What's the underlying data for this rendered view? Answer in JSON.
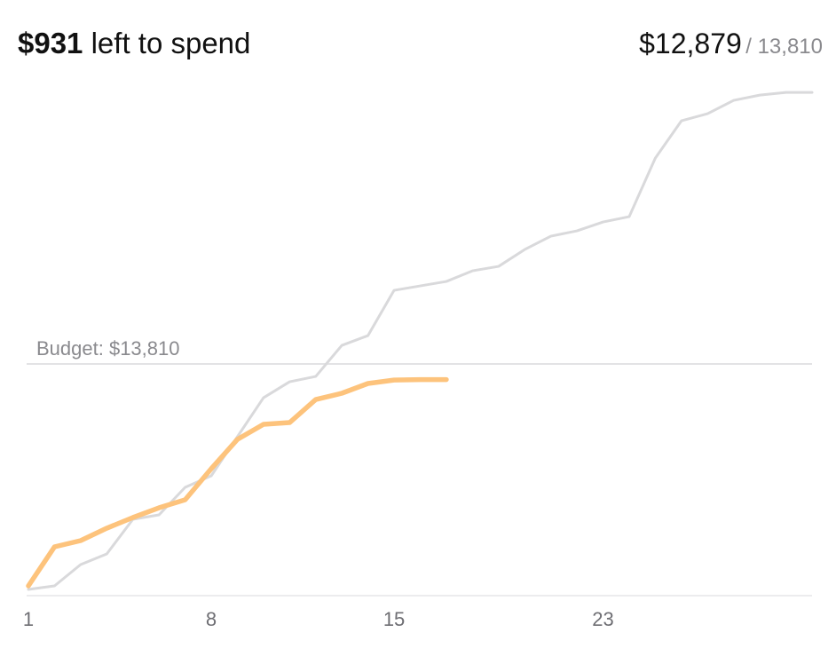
{
  "header": {
    "remaining": "$931",
    "remaining_label": "left to spend",
    "spent": "$12,879",
    "budget": "/ 13,810"
  },
  "chart_data": {
    "type": "line",
    "x": [
      1,
      2,
      3,
      4,
      5,
      6,
      7,
      8,
      9,
      10,
      11,
      12,
      13,
      14,
      15,
      16,
      17,
      18,
      19,
      20,
      21,
      22,
      23,
      24,
      25,
      26,
      27,
      28,
      29,
      30,
      31
    ],
    "series": [
      {
        "color": "#d9d9db",
        "values": [
          370,
          582,
          1852,
          2487,
          4550,
          4815,
          6455,
          7142,
          9470,
          11797,
          12749,
          13066,
          14918,
          15500,
          18198,
          18462,
          18727,
          19361,
          19626,
          20631,
          21425,
          21742,
          22271,
          22589,
          26080,
          28302,
          28725,
          29519,
          29836,
          29995,
          29995
        ]
      },
      {
        "color": "#fdc37c",
        "values": [
          582,
          2910,
          3280,
          4020,
          4656,
          5237,
          5714,
          7566,
          9312,
          10211,
          10317,
          11692,
          12063,
          12645,
          12850,
          12879,
          12879,
          null,
          null,
          null,
          null,
          null,
          null,
          null,
          null,
          null,
          null,
          null,
          null,
          null,
          null
        ]
      }
    ],
    "budget": 13810,
    "budget_label": "Budget: $13,810",
    "xlim": [
      1,
      31
    ],
    "xticks": [
      1,
      8,
      15,
      23
    ],
    "ylim": [
      0,
      30000
    ]
  }
}
